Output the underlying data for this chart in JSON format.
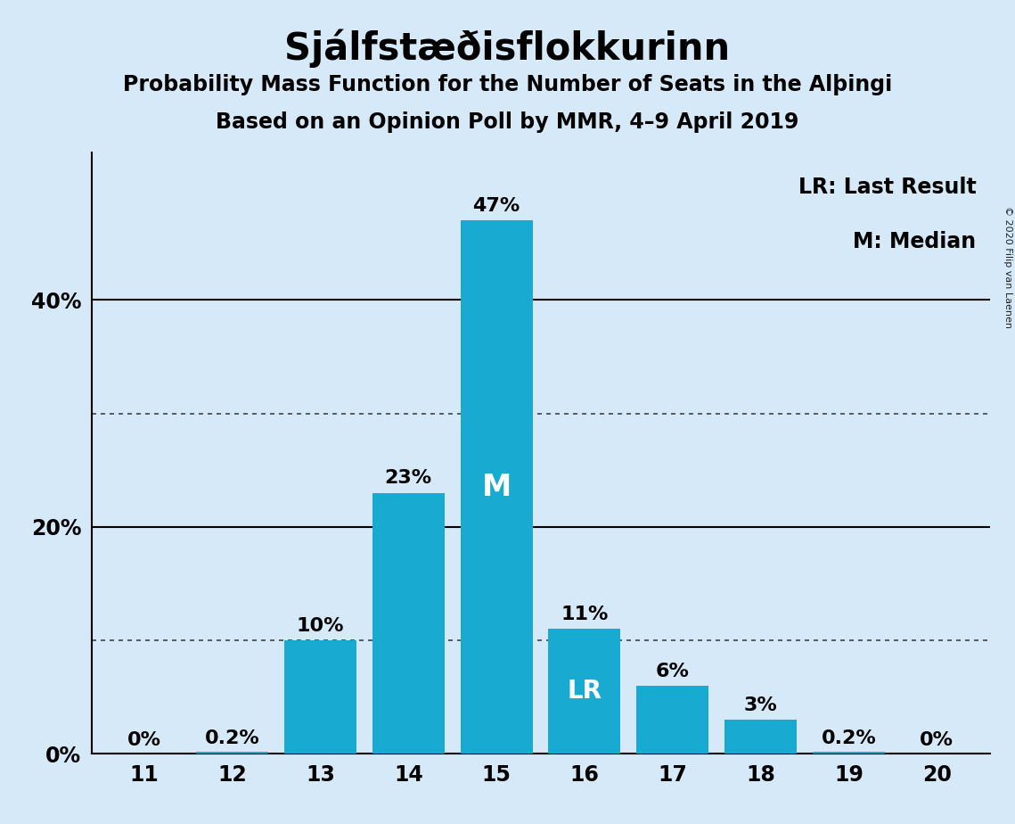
{
  "title": "Sjálfstæðisflokkurinn",
  "subtitle1": "Probability Mass Function for the Number of Seats in the Alþingi",
  "subtitle2": "Based on an Opinion Poll by MMR, 4–9 April 2019",
  "copyright": "© 2020 Filip van Laenen",
  "categories": [
    11,
    12,
    13,
    14,
    15,
    16,
    17,
    18,
    19,
    20
  ],
  "values": [
    0.0,
    0.2,
    10.0,
    23.0,
    47.0,
    11.0,
    6.0,
    3.0,
    0.2,
    0.0
  ],
  "labels": [
    "0%",
    "0.2%",
    "10%",
    "23%",
    "47%",
    "11%",
    "6%",
    "3%",
    "0.2%",
    "0%"
  ],
  "bar_color": "#19AAD1",
  "background_color": "#D6E9F8",
  "median_seat": 15,
  "lr_seat": 16,
  "median_label": "M",
  "lr_label": "LR",
  "legend_lr": "LR: Last Result",
  "legend_m": "M: Median",
  "ylim": [
    0,
    53
  ],
  "ytick_vals": [
    0,
    20,
    40
  ],
  "ytick_labels": [
    "0%",
    "20%",
    "40%"
  ],
  "solid_yticks": [
    20,
    40
  ],
  "dotted_yticks": [
    10,
    30
  ],
  "title_fontsize": 30,
  "subtitle_fontsize": 17,
  "tick_fontsize": 17,
  "annotation_fontsize": 16,
  "legend_fontsize": 17,
  "bar_width": 0.82
}
